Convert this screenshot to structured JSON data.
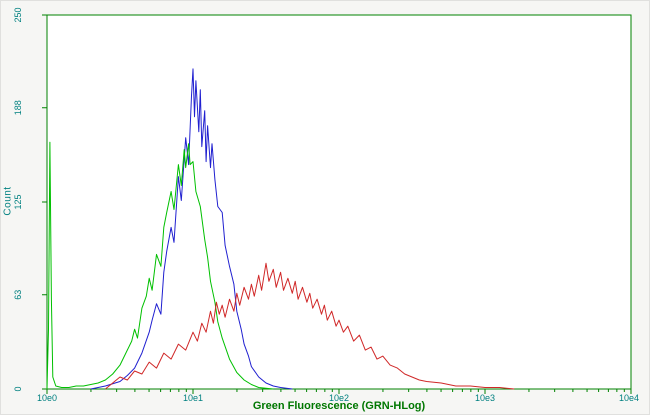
{
  "figure": {
    "background": "#f6f6f4",
    "plot_background": "#ffffff",
    "axis_color": "#008200",
    "tick_label_color": "#008080",
    "axis_title_color": "#007700"
  },
  "chart_data": {
    "type": "line",
    "subtype": "flow-cytometry-histogram-overlay",
    "title": "",
    "xlabel": "Green Fluorescence (GRN-HLog)",
    "ylabel": "Count",
    "x_scale": "log",
    "xlim_log": [
      0,
      4
    ],
    "ylim": [
      0,
      250
    ],
    "x_ticks": [
      "10e0",
      "10e1",
      "10e2",
      "10e3",
      "10e4"
    ],
    "x_tick_positions": [
      0,
      1,
      2,
      3,
      4
    ],
    "y_ticks": [
      0,
      63,
      125,
      188,
      250
    ],
    "grid": false,
    "legend": "none",
    "series": [
      {
        "name": "blue-histogram",
        "color": "#2020d0",
        "points": [
          [
            0.3,
            0
          ],
          [
            0.4,
            2
          ],
          [
            0.5,
            5
          ],
          [
            0.55,
            9
          ],
          [
            0.6,
            14
          ],
          [
            0.65,
            24
          ],
          [
            0.7,
            38
          ],
          [
            0.72,
            46
          ],
          [
            0.75,
            57
          ],
          [
            0.78,
            50
          ],
          [
            0.8,
            78
          ],
          [
            0.82,
            92
          ],
          [
            0.85,
            108
          ],
          [
            0.87,
            98
          ],
          [
            0.9,
            142
          ],
          [
            0.92,
            126
          ],
          [
            0.95,
            168
          ],
          [
            0.97,
            150
          ],
          [
            0.99,
            196
          ],
          [
            1.0,
            214
          ],
          [
            1.01,
            182
          ],
          [
            1.02,
            206
          ],
          [
            1.04,
            172
          ],
          [
            1.05,
            200
          ],
          [
            1.06,
            162
          ],
          [
            1.08,
            186
          ],
          [
            1.09,
            152
          ],
          [
            1.1,
            176
          ],
          [
            1.12,
            148
          ],
          [
            1.13,
            164
          ],
          [
            1.15,
            140
          ],
          [
            1.17,
            122
          ],
          [
            1.2,
            118
          ],
          [
            1.22,
            96
          ],
          [
            1.25,
            82
          ],
          [
            1.28,
            70
          ],
          [
            1.3,
            52
          ],
          [
            1.33,
            40
          ],
          [
            1.35,
            30
          ],
          [
            1.38,
            22
          ],
          [
            1.4,
            15
          ],
          [
            1.45,
            8
          ],
          [
            1.5,
            4
          ],
          [
            1.55,
            2
          ],
          [
            1.6,
            1
          ],
          [
            1.68,
            0
          ]
        ]
      },
      {
        "name": "green-histogram",
        "color": "#00c000",
        "points": [
          [
            0.0,
            0
          ],
          [
            0.01,
            40
          ],
          [
            0.02,
            165
          ],
          [
            0.03,
            60
          ],
          [
            0.04,
            8
          ],
          [
            0.06,
            2
          ],
          [
            0.1,
            1
          ],
          [
            0.15,
            1
          ],
          [
            0.2,
            2
          ],
          [
            0.25,
            2
          ],
          [
            0.3,
            3
          ],
          [
            0.35,
            4
          ],
          [
            0.4,
            6
          ],
          [
            0.45,
            10
          ],
          [
            0.5,
            16
          ],
          [
            0.55,
            26
          ],
          [
            0.58,
            32
          ],
          [
            0.6,
            40
          ],
          [
            0.62,
            34
          ],
          [
            0.65,
            54
          ],
          [
            0.68,
            62
          ],
          [
            0.7,
            74
          ],
          [
            0.72,
            66
          ],
          [
            0.75,
            90
          ],
          [
            0.78,
            82
          ],
          [
            0.8,
            108
          ],
          [
            0.82,
            118
          ],
          [
            0.85,
            132
          ],
          [
            0.87,
            120
          ],
          [
            0.9,
            150
          ],
          [
            0.92,
            136
          ],
          [
            0.94,
            160
          ],
          [
            0.95,
            148
          ],
          [
            0.97,
            164
          ],
          [
            0.98,
            150
          ],
          [
            1.0,
            152
          ],
          [
            1.02,
            132
          ],
          [
            1.05,
            122
          ],
          [
            1.08,
            100
          ],
          [
            1.1,
            88
          ],
          [
            1.12,
            72
          ],
          [
            1.15,
            58
          ],
          [
            1.17,
            45
          ],
          [
            1.2,
            34
          ],
          [
            1.25,
            20
          ],
          [
            1.3,
            11
          ],
          [
            1.35,
            6
          ],
          [
            1.4,
            3
          ],
          [
            1.45,
            1
          ],
          [
            1.55,
            0
          ]
        ]
      },
      {
        "name": "red-histogram",
        "color": "#d02828",
        "points": [
          [
            0.4,
            0
          ],
          [
            0.45,
            4
          ],
          [
            0.5,
            8
          ],
          [
            0.55,
            6
          ],
          [
            0.6,
            12
          ],
          [
            0.65,
            10
          ],
          [
            0.7,
            18
          ],
          [
            0.75,
            14
          ],
          [
            0.8,
            24
          ],
          [
            0.85,
            20
          ],
          [
            0.9,
            30
          ],
          [
            0.95,
            26
          ],
          [
            1.0,
            38
          ],
          [
            1.03,
            32
          ],
          [
            1.06,
            44
          ],
          [
            1.09,
            38
          ],
          [
            1.12,
            52
          ],
          [
            1.14,
            44
          ],
          [
            1.16,
            58
          ],
          [
            1.18,
            50
          ],
          [
            1.2,
            56
          ],
          [
            1.22,
            48
          ],
          [
            1.25,
            60
          ],
          [
            1.28,
            52
          ],
          [
            1.3,
            64
          ],
          [
            1.32,
            56
          ],
          [
            1.35,
            68
          ],
          [
            1.38,
            60
          ],
          [
            1.4,
            70
          ],
          [
            1.42,
            62
          ],
          [
            1.45,
            76
          ],
          [
            1.47,
            66
          ],
          [
            1.5,
            84
          ],
          [
            1.52,
            72
          ],
          [
            1.55,
            80
          ],
          [
            1.57,
            68
          ],
          [
            1.6,
            78
          ],
          [
            1.62,
            66
          ],
          [
            1.65,
            74
          ],
          [
            1.68,
            64
          ],
          [
            1.7,
            72
          ],
          [
            1.72,
            60
          ],
          [
            1.75,
            68
          ],
          [
            1.78,
            58
          ],
          [
            1.8,
            64
          ],
          [
            1.82,
            54
          ],
          [
            1.85,
            60
          ],
          [
            1.88,
            50
          ],
          [
            1.9,
            56
          ],
          [
            1.92,
            46
          ],
          [
            1.95,
            52
          ],
          [
            1.98,
            42
          ],
          [
            2.0,
            46
          ],
          [
            2.03,
            38
          ],
          [
            2.06,
            42
          ],
          [
            2.1,
            32
          ],
          [
            2.14,
            36
          ],
          [
            2.18,
            26
          ],
          [
            2.22,
            28
          ],
          [
            2.26,
            20
          ],
          [
            2.3,
            22
          ],
          [
            2.35,
            16
          ],
          [
            2.4,
            14
          ],
          [
            2.45,
            10
          ],
          [
            2.5,
            8
          ],
          [
            2.55,
            6
          ],
          [
            2.6,
            5
          ],
          [
            2.7,
            4
          ],
          [
            2.8,
            2
          ],
          [
            2.9,
            2
          ],
          [
            3.0,
            1
          ],
          [
            3.1,
            1
          ],
          [
            3.2,
            0
          ]
        ]
      }
    ]
  }
}
